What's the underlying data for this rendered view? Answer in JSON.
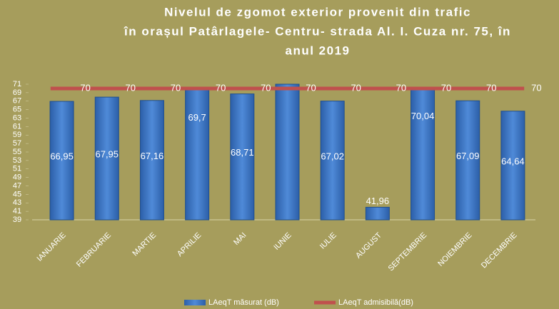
{
  "chart_data": {
    "type": "bar_line",
    "title": [
      "Nivelul de zgomot exterior provenit din trafic",
      "în orașul Patârlagele- Centru- strada Al. I. Cuza nr. 75,  în",
      "anul 2019"
    ],
    "categories": [
      "IANUARIE",
      "FEBRUARIE",
      "MARTIE",
      "APRILIE",
      "MAI",
      "IUNIE",
      "IULIE",
      "AUGUST",
      "SEPTEMBRIE",
      "NOIEMBRIE",
      "DECEMBRIE"
    ],
    "series": [
      {
        "name": "LAeqT măsurat (dB)",
        "color": "#3f78c8",
        "kind": "bar",
        "values": [
          66.95,
          67.95,
          67.16,
          69.7,
          68.71,
          71,
          67.02,
          41.96,
          70.04,
          67.09,
          64.64
        ],
        "value_labels": [
          "66,95",
          "67,95",
          "67,16",
          "69,7",
          "68,71",
          null,
          "67,02",
          "41,96",
          "70,04",
          "67,09",
          "64,64"
        ]
      },
      {
        "name": "LAeqT admisibilă(dB)",
        "color": "#c0504d",
        "kind": "line",
        "values": [
          70,
          70,
          70,
          70,
          70,
          70,
          70,
          70,
          70,
          70,
          70
        ]
      }
    ],
    "ylim": [
      39,
      71
    ],
    "yticks": [
      39,
      41,
      43,
      45,
      47,
      49,
      51,
      53,
      55,
      57,
      59,
      61,
      63,
      65,
      67,
      69,
      71
    ],
    "legend": "bottom"
  }
}
